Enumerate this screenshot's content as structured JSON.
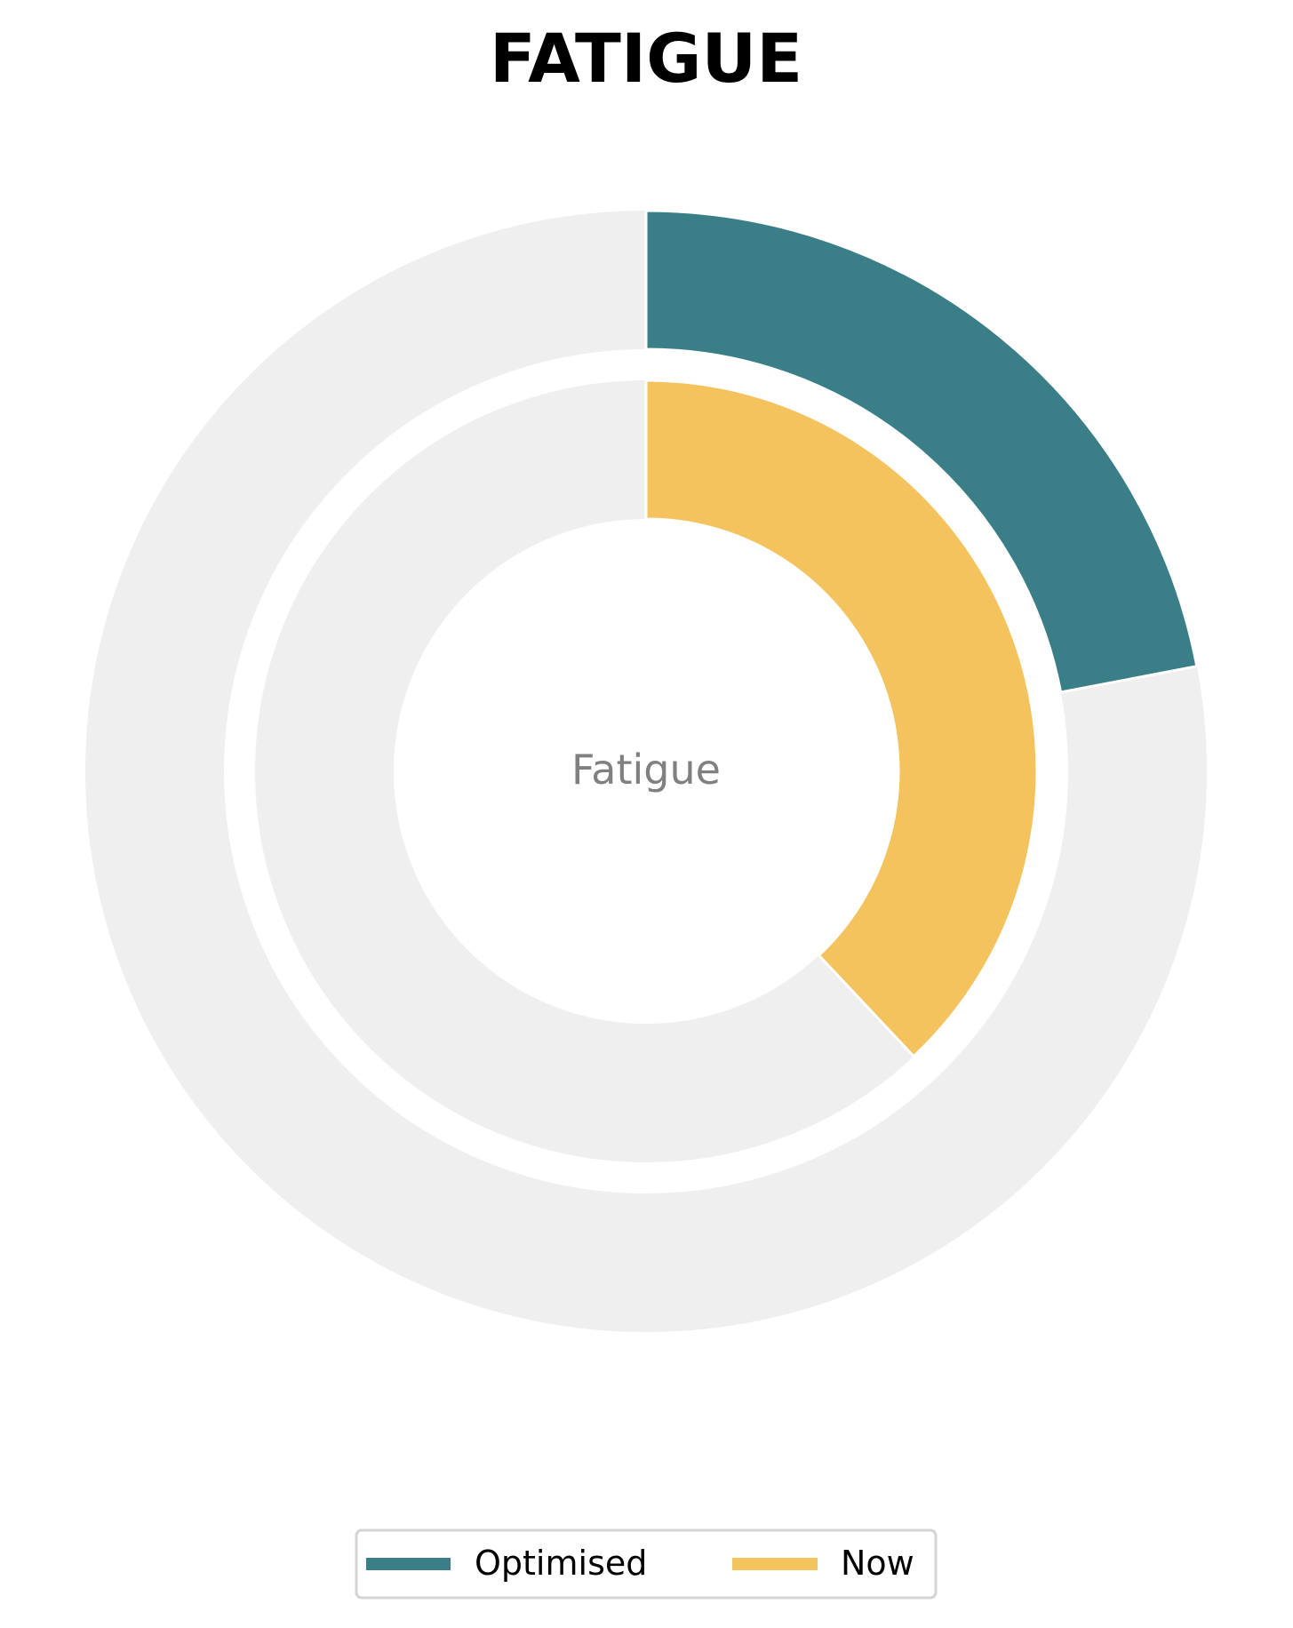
{
  "chart_data": {
    "type": "pie",
    "title": "FATIGUE",
    "center_label": "Fatigue",
    "scale_max": 100,
    "series": [
      {
        "name": "Optimised",
        "value": 22,
        "ring": "outer",
        "color": "#3A7F87"
      },
      {
        "name": "Now",
        "value": 38,
        "ring": "inner",
        "color": "#F4C35E"
      }
    ],
    "track_color": "#EFEFEF",
    "legend": {
      "position": "bottom-center",
      "entries": [
        "Optimised",
        "Now"
      ]
    }
  }
}
